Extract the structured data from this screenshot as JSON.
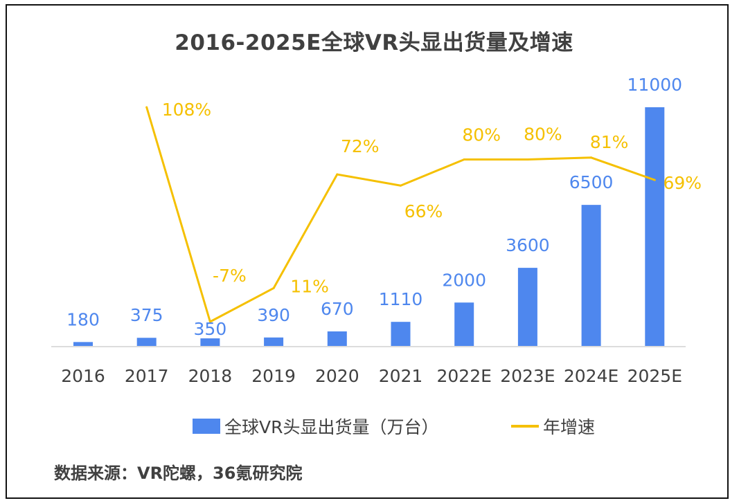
{
  "chart_data": {
    "type": "bar",
    "title": "2016-2025E全球VR头显出货量及增速",
    "categories": [
      "2016",
      "2017",
      "2018",
      "2019",
      "2020",
      "2021",
      "2022E",
      "2023E",
      "2024E",
      "2025E"
    ],
    "series": [
      {
        "name": "全球VR头显出货量（万台）",
        "type": "bar",
        "values": [
          180,
          375,
          350,
          390,
          670,
          1110,
          2000,
          3600,
          6500,
          11000
        ],
        "labels": [
          "180",
          "375",
          "350",
          "390",
          "670",
          "1110",
          "2000",
          "3600",
          "6500",
          "11000"
        ],
        "color": "#4e87ee"
      },
      {
        "name": "年增速",
        "type": "line",
        "values": [
          null,
          108,
          -7,
          11,
          72,
          66,
          80,
          80,
          81,
          69
        ],
        "labels": [
          "",
          "108%",
          "-7%",
          "11%",
          "72%",
          "66%",
          "80%",
          "80%",
          "81%",
          "69%"
        ],
        "color": "#f5c000"
      }
    ],
    "ylim_bar": [
      0,
      11000
    ],
    "ylim_line": [
      -10,
      110
    ],
    "legend_position": "bottom",
    "grid": false
  },
  "source": "数据来源：VR陀螺，36氪研究院"
}
